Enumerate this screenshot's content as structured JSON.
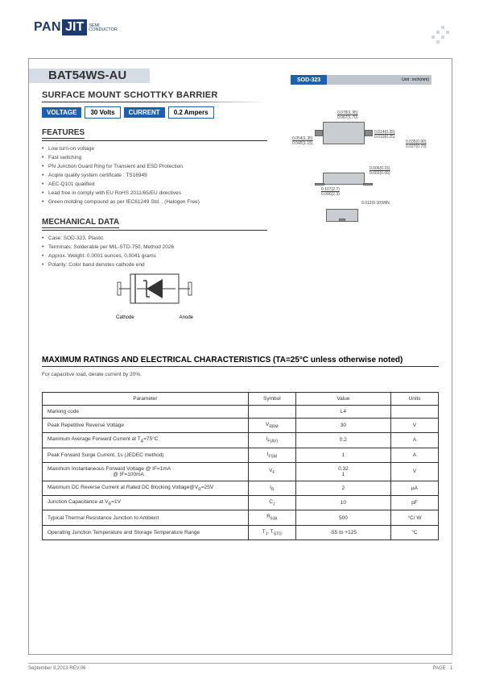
{
  "header": {
    "logo_pan": "PAN",
    "logo_jit": "JIT",
    "logo_sub1": "SEMI",
    "logo_sub2": "CONDUCTOR"
  },
  "title": {
    "part": "BAT54WS-AU",
    "subtitle": "SURFACE MOUNT SCHOTTKY BARRIER"
  },
  "spec": {
    "voltage_label": "VOLTAGE",
    "voltage_value": "30 Volts",
    "current_label": "CURRENT",
    "current_value": "0.2 Ampers"
  },
  "features": {
    "head": "FEATURES",
    "items": [
      "Low turn-on voltage",
      "Fast switching",
      "PN Junction Guard Ring for Transient and ESD Protection.",
      "Acqire quality system certificate : TS16949",
      "AEC-Q101 qualified",
      "Lead free in comply with EU RoHS 2011/65/EU directives",
      "Green molding compound as per IEC61249 Std. . (Halogen Free)"
    ]
  },
  "mech": {
    "head": "MECHANICAL DATA",
    "items": [
      "Case: SOD-323, Plastic",
      "Terminals: Solderable per MIL-STD-750, Method 2026",
      "Approx. Weight: 0.0001 ounces, 0.0041 grams",
      "Polarity: Color band denotes cathode end"
    ],
    "cathode": "Cathode",
    "anode": "Anode"
  },
  "package": {
    "name": "SOD-323",
    "unit": "Unit : inch(mm)",
    "dims": {
      "d1": "0.078(1.95)",
      "d2": "0.067(1.70)",
      "d3": "0.054(1.35)",
      "d4": "0.045(1.15)",
      "d5": "0.014(0.35)",
      "d6": "0.010(0.25)",
      "d7": "0.035(0.90)",
      "d8": "0.027(0.70)",
      "d9": "0.006(0.15)",
      "d10": "0.002(0.05)",
      "d11": "0.107(2.7)",
      "d12": "0.090(2.3)",
      "d13": "0.012(0.30)MIN."
    }
  },
  "ratings": {
    "head": "MAXIMUM RATINGS AND ELECTRICAL CHARACTERISTICS (TA=25°C unless otherwise noted)",
    "note": "For capacitive load, derate current by 20%.",
    "columns": [
      "Parameter",
      "Symbol",
      "Value",
      "Units"
    ],
    "rows": [
      {
        "p": "Marking code",
        "s": "",
        "v": "L4",
        "u": ""
      },
      {
        "p": "Peak Repetitive Reverse Voltage",
        "s": "V<sub>RRM</sub>",
        "v": "30",
        "u": "V"
      },
      {
        "p": "Maximum Average Forward  Current at T<sub>A</sub>=75°C",
        "s": "I<sub>F(AV)</sub>",
        "v": "0.2",
        "u": "A"
      },
      {
        "p": "Peak Forward Surge Current, 1s (JEDEC method)",
        "s": "I<sub>FSM</sub>",
        "v": "1",
        "u": "A"
      },
      {
        "p": "Maximum Instantaneous Forward Voltage @ IF=1mA<br>&nbsp;&nbsp;&nbsp;&nbsp;&nbsp;&nbsp;&nbsp;&nbsp;&nbsp;&nbsp;&nbsp;&nbsp;&nbsp;&nbsp;&nbsp;&nbsp;&nbsp;&nbsp;&nbsp;&nbsp;&nbsp;&nbsp;&nbsp;&nbsp;&nbsp;&nbsp;&nbsp;&nbsp;&nbsp;&nbsp;&nbsp;&nbsp;&nbsp;&nbsp;&nbsp;&nbsp;&nbsp;&nbsp;&nbsp;&nbsp;&nbsp;&nbsp;&nbsp;&nbsp;&nbsp;@ IF=100mA",
        "s": "V<sub>F</sub>",
        "v": "0.32<br>1",
        "u": "V"
      },
      {
        "p": "Maximum DC Reverse Current at Rated DC Blocking Voltage@V<sub>R</sub>=25V",
        "s": "I<sub>R</sub>",
        "v": "2",
        "u": "µA"
      },
      {
        "p": "Junction Capacitance at V<sub>R</sub>=1V",
        "s": "C<sub>J</sub>",
        "v": "10",
        "u": "pF"
      },
      {
        "p": "Typical Thermal Resistance Junction to Ambient",
        "s": "R<sub>θJA</sub>",
        "v": "500",
        "u": "°C/ W"
      },
      {
        "p": "Operating Junction Temperature and Storage Temperature Range",
        "s": "T<sub>J</sub>, T<sub>STG</sub>",
        "v": "-55 to +125",
        "u": "°C"
      }
    ]
  },
  "footer": {
    "date": "September 9,2013-REV.06",
    "page": "PAGE .  1"
  },
  "colors": {
    "brand_blue": "#1b3a6f",
    "accent_blue": "#1d5fb0",
    "grey_bar": "#d6dce6",
    "pkg_grey": "#bfc5cc"
  }
}
